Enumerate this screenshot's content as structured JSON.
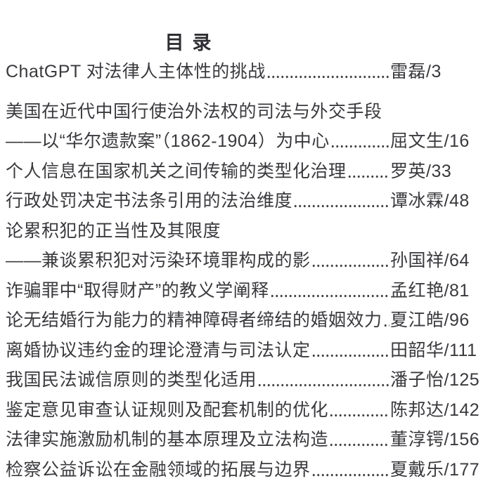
{
  "toc": {
    "heading": "目录",
    "page_separator": "/",
    "text_color": "#3a3a3e",
    "background_color": "#ffffff",
    "entries": [
      {
        "title": "ChatGPT 对法律人主体性的挑战",
        "author": "雷磊",
        "page": "3",
        "gap_before": false
      },
      {
        "title": "美国在近代中国行使治外法权的司法与外交手段",
        "author": "",
        "page": "",
        "gap_before": true
      },
      {
        "title": "——以“华尔遗款案”（1862-1904）为中心",
        "author": "屈文生",
        "page": "16",
        "gap_before": false
      },
      {
        "title": "个人信息在国家机关之间传输的类型化治理",
        "author": "罗英",
        "page": "33",
        "gap_before": false
      },
      {
        "title": "行政处罚决定书法条引用的法治维度",
        "author": "谭冰霖",
        "page": "48",
        "gap_before": false
      },
      {
        "title": "论累积犯的正当性及其限度",
        "author": "",
        "page": "",
        "gap_before": false
      },
      {
        "title": "——兼谈累积犯对污染环境罪构成的影",
        "author": "孙国祥",
        "page": "64",
        "gap_before": false
      },
      {
        "title": "诈骗罪中“取得财产”的教义学阐释",
        "author": "孟红艳",
        "page": "81",
        "gap_before": false
      },
      {
        "title": "论无结婚行为能力的精神障碍者缔结的婚姻效力",
        "author": "夏江皓",
        "page": "96",
        "gap_before": false
      },
      {
        "title": "离婚协议违约金的理论澄清与司法认定",
        "author": "田韶华",
        "page": "111",
        "gap_before": false
      },
      {
        "title": "我国民法诚信原则的类型化适用",
        "author": "潘子怡",
        "page": "125",
        "gap_before": false
      },
      {
        "title": "鉴定意见审查认证规则及配套机制的优化",
        "author": "陈邦达",
        "page": "142",
        "gap_before": false
      },
      {
        "title": "法律实施激励机制的基本原理及立法构造",
        "author": "董淳锷",
        "page": "156",
        "gap_before": false
      },
      {
        "title": "检察公益诉讼在金融领域的拓展与边界",
        "author": "夏戴乐",
        "page": "177",
        "gap_before": false
      }
    ]
  }
}
